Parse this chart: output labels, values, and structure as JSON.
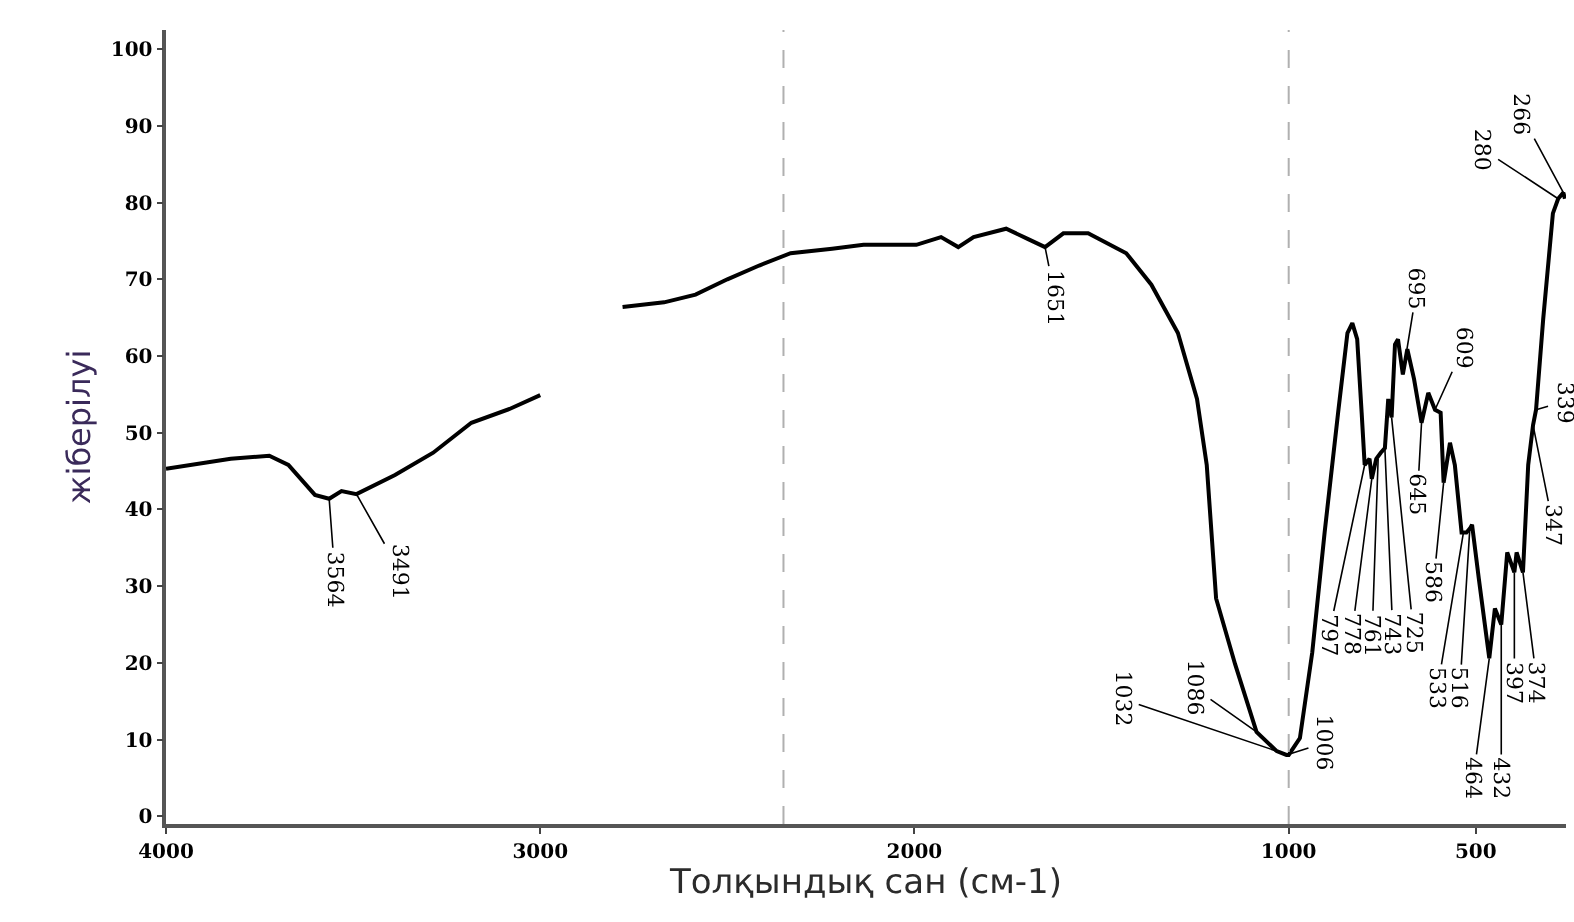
{
  "chart_data": {
    "type": "line",
    "xlabel": "Толқындық сан (см-1)",
    "ylabel": "жіберілуі",
    "x": [
      4000,
      3827,
      3724,
      3673,
      3602,
      3564,
      3531,
      3491,
      3388,
      3286,
      3184,
      3082,
      3000,
      2900,
      2780,
      2669,
      2585,
      2500,
      2415,
      2331,
      2220,
      2136,
      1995,
      1929,
      1883,
      1842,
      1755,
      1699,
      1651,
      1602,
      1536,
      1434,
      1367,
      1296,
      1245,
      1219,
      1194,
      1143,
      1086,
      1032,
      1006,
      1000,
      970,
      937,
      904,
      868,
      843,
      830,
      817,
      805,
      797,
      784,
      778,
      766,
      754,
      743,
      734,
      725,
      716,
      708,
      695,
      683,
      665,
      645,
      627,
      609,
      594,
      586,
      569,
      556,
      538,
      525,
      516,
      510,
      492,
      464,
      449,
      432,
      416,
      397,
      391,
      374,
      360,
      347,
      339,
      320,
      294,
      280,
      266,
      262
    ],
    "series": [
      {
        "color": "#000000",
        "values": [
          45.3,
          46.6,
          47,
          45.8,
          41.9,
          41.4,
          42.4,
          42,
          44.5,
          47.4,
          51.3,
          53.1,
          54.9,
          null,
          66.4,
          67,
          68,
          70,
          71.8,
          73.4,
          74,
          74.5,
          74.5,
          75.5,
          74.2,
          75.5,
          76.6,
          75.3,
          74.2,
          76,
          76,
          73.4,
          69.3,
          63,
          54.4,
          45.8,
          28.4,
          19.8,
          11,
          8.5,
          8,
          8,
          10.2,
          21.4,
          37,
          52.6,
          63,
          64.3,
          62.2,
          52.6,
          45.8,
          46.6,
          44,
          46.6,
          47.4,
          48,
          54.4,
          52,
          61.5,
          62.2,
          57.6,
          60.9,
          57,
          51.3,
          55.2,
          53,
          52.6,
          43.5,
          48.7,
          45.8,
          37,
          37,
          37.5,
          38,
          31,
          20.6,
          27.1,
          25,
          34.4,
          31.8,
          34.4,
          31.8,
          45.8,
          51,
          53,
          64.8,
          78.6,
          80.5,
          81.3,
          80.5
        ]
      }
    ],
    "xlim": [
      4000,
      259
    ],
    "xticks": [
      4000,
      3000,
      2000,
      1000,
      500
    ],
    "ylim": [
      -1,
      102.5
    ],
    "yticks": [
      0,
      10,
      20,
      30,
      40,
      50,
      60,
      70,
      80,
      90,
      100
    ],
    "marker": "none",
    "line_style": "solid",
    "ref_lines": [
      {
        "axis": "x",
        "value": 2350,
        "color": "#b0b0b0",
        "line_style": "dashed"
      },
      {
        "axis": "x",
        "value": 1000,
        "color": "#b0b0b0",
        "line_style": "dashed"
      }
    ],
    "annotations": [
      {
        "text": "3564",
        "x": 3564,
        "y": 41.4
      },
      {
        "text": "3491",
        "x": 3491,
        "y": 42
      },
      {
        "text": "1651",
        "x": 1651,
        "y": 74.2
      },
      {
        "text": "1086",
        "x": 1086,
        "y": 11
      },
      {
        "text": "1032",
        "x": 1032,
        "y": 8.5
      },
      {
        "text": "1006",
        "x": 1006,
        "y": 8
      },
      {
        "text": "797",
        "x": 797,
        "y": 45.8
      },
      {
        "text": "778",
        "x": 778,
        "y": 44
      },
      {
        "text": "761",
        "x": 761,
        "y": 46.6
      },
      {
        "text": "743",
        "x": 743,
        "y": 48
      },
      {
        "text": "725",
        "x": 725,
        "y": 52
      },
      {
        "text": "695",
        "x": 695,
        "y": 57.6
      },
      {
        "text": "645",
        "x": 645,
        "y": 51.3
      },
      {
        "text": "609",
        "x": 609,
        "y": 53
      },
      {
        "text": "586",
        "x": 586,
        "y": 43.5
      },
      {
        "text": "533",
        "x": 533,
        "y": 37
      },
      {
        "text": "516",
        "x": 516,
        "y": 37.5
      },
      {
        "text": "464",
        "x": 464,
        "y": 20.6
      },
      {
        "text": "432",
        "x": 432,
        "y": 25
      },
      {
        "text": "397",
        "x": 397,
        "y": 31.8
      },
      {
        "text": "374",
        "x": 374,
        "y": 31.8
      },
      {
        "text": "347",
        "x": 347,
        "y": 51
      },
      {
        "text": "339",
        "x": 339,
        "y": 53
      },
      {
        "text": "280",
        "x": 280,
        "y": 80.5
      },
      {
        "text": "266",
        "x": 266,
        "y": 81.3
      }
    ]
  }
}
